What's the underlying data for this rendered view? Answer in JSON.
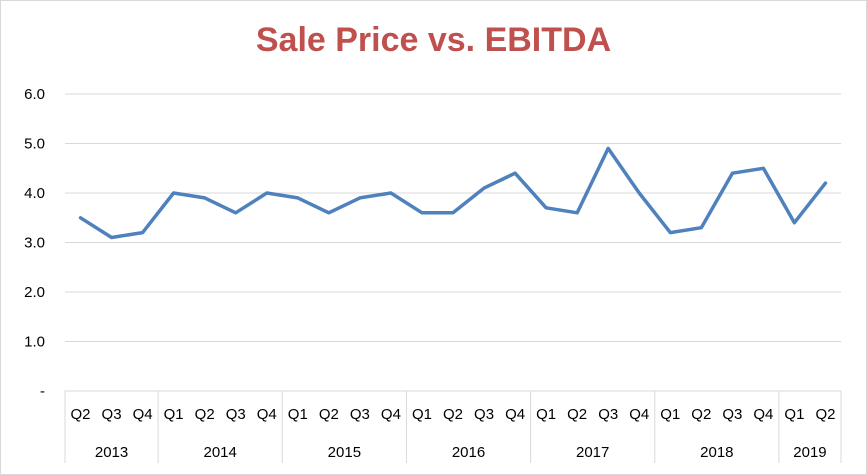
{
  "chart_data": {
    "type": "line",
    "title": "Sale Price vs. EBITDA",
    "xlabel": "",
    "ylabel": "",
    "ylim": [
      0,
      6
    ],
    "y_ticks": [
      "-",
      "1.0",
      "2.0",
      "3.0",
      "4.0",
      "5.0",
      "6.0"
    ],
    "grid": true,
    "legend": "none",
    "line_color": "#4f81bd",
    "title_color": "#c0504d",
    "categories": [
      "2013 Q2",
      "2013 Q3",
      "2013 Q4",
      "2014 Q1",
      "2014 Q2",
      "2014 Q3",
      "2014 Q4",
      "2015 Q1",
      "2015 Q2",
      "2015 Q3",
      "2015 Q4",
      "2016 Q1",
      "2016 Q2",
      "2016 Q3",
      "2016 Q4",
      "2017 Q1",
      "2017 Q2",
      "2017 Q3",
      "2017 Q4",
      "2018 Q1",
      "2018 Q2",
      "2018 Q3",
      "2018 Q4",
      "2019 Q1",
      "2019 Q2"
    ],
    "quarter_labels": [
      "Q2",
      "Q3",
      "Q4",
      "Q1",
      "Q2",
      "Q3",
      "Q4",
      "Q1",
      "Q2",
      "Q3",
      "Q4",
      "Q1",
      "Q2",
      "Q3",
      "Q4",
      "Q1",
      "Q2",
      "Q3",
      "Q4",
      "Q1",
      "Q2",
      "Q3",
      "Q4",
      "Q1",
      "Q2"
    ],
    "year_groups": [
      {
        "label": "2013",
        "count": 3
      },
      {
        "label": "2014",
        "count": 4
      },
      {
        "label": "2015",
        "count": 4
      },
      {
        "label": "2016",
        "count": 4
      },
      {
        "label": "2017",
        "count": 4
      },
      {
        "label": "2018",
        "count": 4
      },
      {
        "label": "2019",
        "count": 2
      }
    ],
    "series": [
      {
        "values": [
          3.5,
          3.1,
          3.2,
          4.0,
          3.9,
          3.6,
          4.0,
          3.9,
          3.6,
          3.9,
          4.0,
          3.6,
          3.6,
          4.1,
          4.4,
          3.7,
          3.6,
          4.9,
          4.0,
          3.2,
          3.3,
          4.4,
          4.5,
          3.4,
          4.2
        ]
      }
    ]
  }
}
